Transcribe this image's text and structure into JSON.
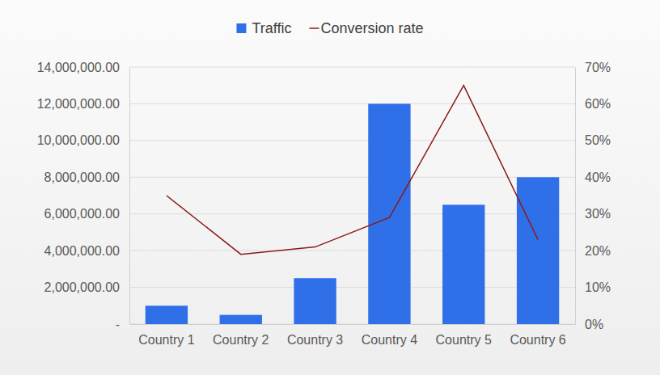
{
  "chart_data": {
    "type": "bar",
    "categories": [
      "Country 1",
      "Country 2",
      "Country 3",
      "Country 4",
      "Country 5",
      "Country 6"
    ],
    "series": [
      {
        "name": "Traffic",
        "type": "bar",
        "color": "#2f6fe8",
        "values": [
          1000000,
          500000,
          2500000,
          12000000,
          6500000,
          8000000
        ]
      },
      {
        "name": "Conversion rate",
        "type": "line",
        "color": "#8b1a1a",
        "axis": "y2",
        "values": [
          35,
          19,
          21,
          29,
          65,
          23
        ]
      }
    ],
    "ylim": [
      0,
      14000000
    ],
    "yticks": [
      {
        "value": 0,
        "label": "-"
      },
      {
        "value": 2000000,
        "label": "2,000,000.00"
      },
      {
        "value": 4000000,
        "label": "4,000,000.00"
      },
      {
        "value": 6000000,
        "label": "6,000,000.00"
      },
      {
        "value": 8000000,
        "label": "8,000,000.00"
      },
      {
        "value": 10000000,
        "label": "10,000,000.00"
      },
      {
        "value": 12000000,
        "label": "12,000,000.00"
      },
      {
        "value": 14000000,
        "label": "14,000,000.00"
      }
    ],
    "y2lim": [
      0,
      70
    ],
    "y2ticks": [
      {
        "value": 0,
        "label": "0%"
      },
      {
        "value": 10,
        "label": "10%"
      },
      {
        "value": 20,
        "label": "20%"
      },
      {
        "value": 30,
        "label": "30%"
      },
      {
        "value": 40,
        "label": "40%"
      },
      {
        "value": 50,
        "label": "50%"
      },
      {
        "value": 60,
        "label": "60%"
      },
      {
        "value": 70,
        "label": "70%"
      }
    ],
    "grid": true,
    "legend": "top"
  }
}
